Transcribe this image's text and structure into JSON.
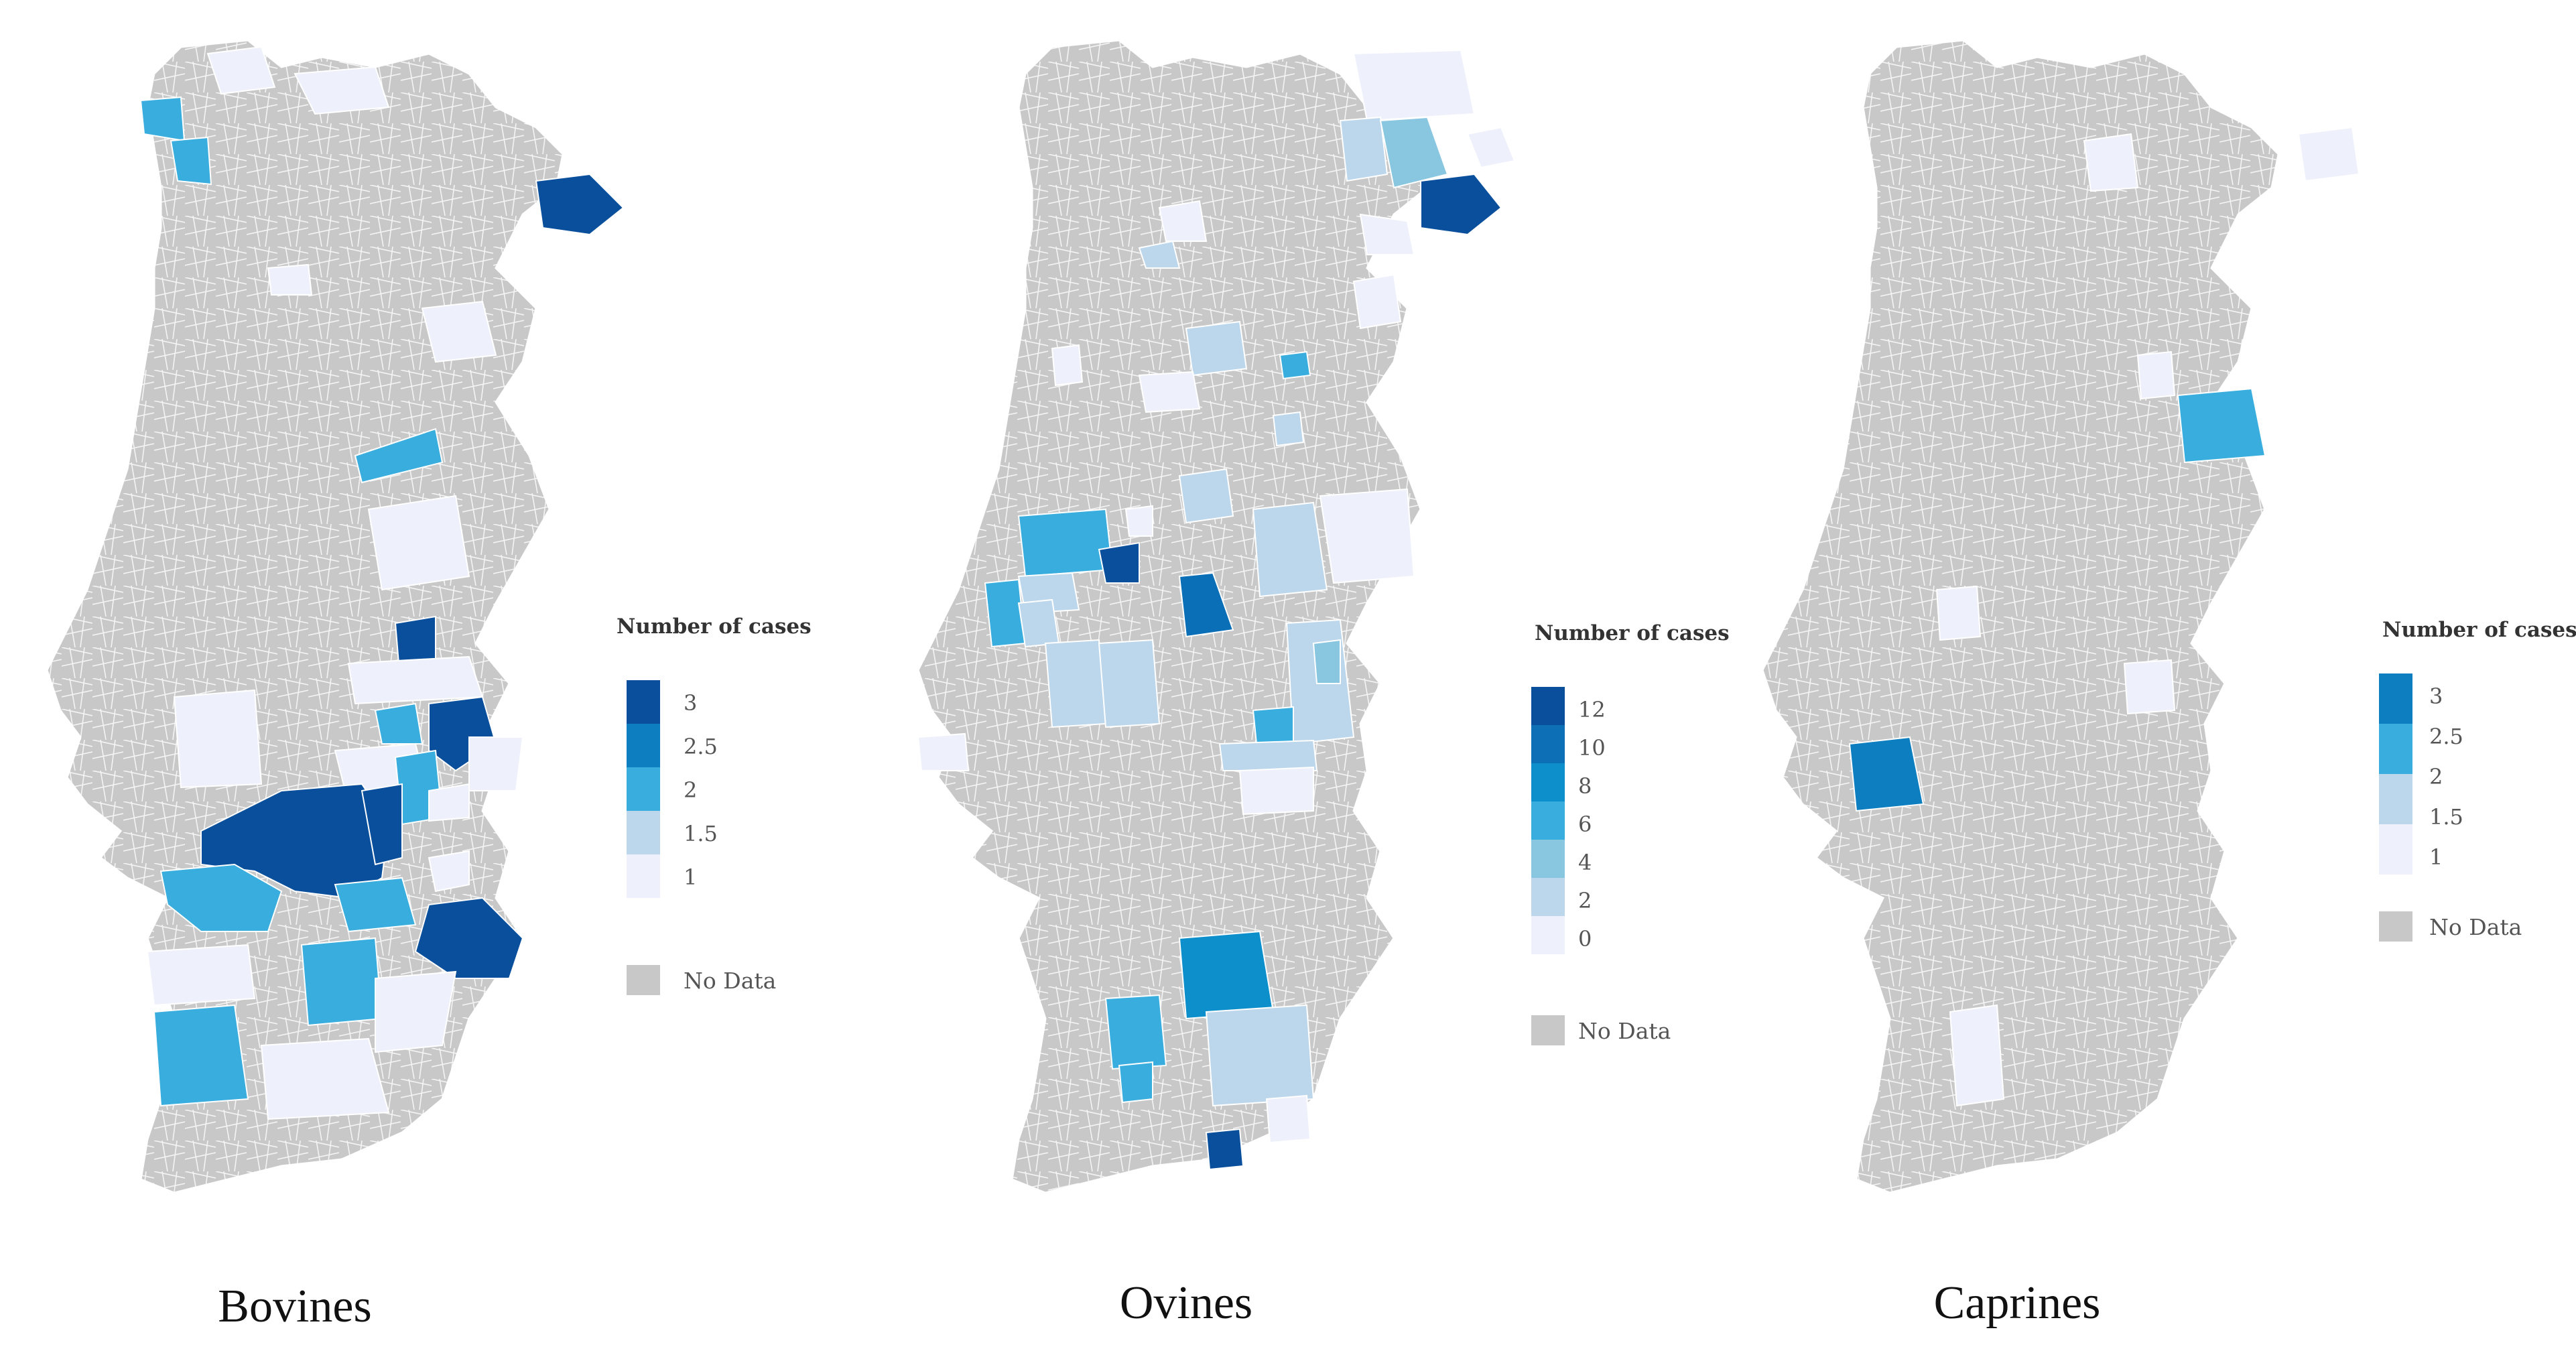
{
  "colors": {
    "no_data": "#c8c8c8",
    "border": "#ffffff",
    "ramp": [
      "#eef1fb",
      "#bcd7ec",
      "#89c7e1",
      "#39aede",
      "#0d7fc0",
      "#0a4f9c"
    ]
  },
  "panels": [
    {
      "id": "bovines",
      "title": "Bovines",
      "legend": {
        "title": "Number of cases",
        "ticks": [
          "3",
          "2.5",
          "2",
          "1.5",
          "1"
        ],
        "swatch_colors": [
          "#0a4f9c",
          "#0d7fc0",
          "#39aede",
          "#bcd7ec",
          "#eef1fb"
        ],
        "no_data_label": "No Data"
      }
    },
    {
      "id": "ovines",
      "title": "Ovines",
      "legend": {
        "title": "Number of cases",
        "ticks": [
          "12",
          "10",
          "8",
          "6",
          "4",
          "2",
          "0"
        ],
        "swatch_colors": [
          "#0a4f9c",
          "#0d6fb6",
          "#0d8fcb",
          "#39aede",
          "#89c7e1",
          "#bcd7ec",
          "#eef1fb"
        ],
        "no_data_label": "No Data"
      }
    },
    {
      "id": "caprines",
      "title": "Caprines",
      "legend": {
        "title": "Number of cases",
        "ticks": [
          "3",
          "2.5",
          "2",
          "1.5",
          "1"
        ],
        "swatch_colors": [
          "#0d7fc0",
          "#39aede",
          "#bcd7ec",
          "#eef1fb"
        ],
        "no_data_label": "No Data"
      }
    }
  ]
}
